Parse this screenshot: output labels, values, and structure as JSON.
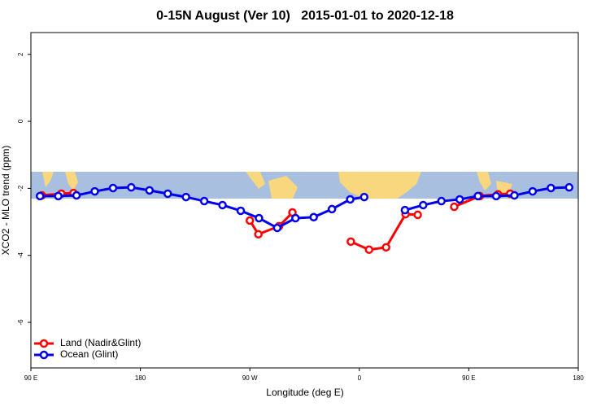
{
  "chart_data": {
    "type": "line",
    "title": "0-15N August (Ver 10)   2015-01-01 to 2020-12-18",
    "x_label": "Longitude (deg E)",
    "y_label": "XCO2 - MLO trend (ppm)",
    "xlim": [
      90,
      540
    ],
    "ylim": [
      -7.36,
      2.65
    ],
    "xticks": [
      {
        "value": 90,
        "label": "90 E"
      },
      180,
      {
        "value": 270,
        "label": "90 W"
      },
      {
        "value": 360,
        "label": "0"
      },
      {
        "value": 450,
        "label": "90 E"
      },
      {
        "value": 540,
        "label": "180"
      }
    ],
    "yticks": [
      2,
      0,
      -2,
      -4,
      -6
    ],
    "legend": "bottom-left",
    "series": [
      {
        "name": "Land (Nadir&Glint)",
        "color": "#ff0000",
        "x": [
          99,
          115,
          125,
          null,
          270,
          277,
          294,
          305,
          null,
          353,
          368,
          382,
          398,
          408,
          null,
          438,
          459,
          474,
          484
        ],
        "values": [
          -2.21,
          -2.16,
          -2.14,
          null,
          -2.96,
          -3.37,
          -3.13,
          -2.72,
          null,
          -3.59,
          -3.83,
          -3.76,
          -2.77,
          -2.79,
          null,
          -2.55,
          -2.23,
          -2.18,
          -2.16
        ]
      },
      {
        "name": "Ocean (Glint)",
        "color": "#0000ee",
        "x": [
          97.5,
          112.5,
          127.5,
          142.5,
          157.5,
          172.5,
          187.5,
          202.5,
          217.5,
          232.5,
          247.5,
          262.5,
          277.5,
          292.5,
          307.5,
          322.5,
          337.5,
          352.5,
          364,
          null,
          397.5,
          412.5,
          427.5,
          442.5,
          457.5,
          472.5,
          487.5,
          502.5,
          517.5,
          532.5
        ],
        "values": [
          -2.23,
          -2.23,
          -2.21,
          -2.09,
          -1.99,
          -1.97,
          -2.06,
          -2.16,
          -2.26,
          -2.38,
          -2.5,
          -2.67,
          -2.89,
          -3.18,
          -2.89,
          -2.86,
          -2.62,
          -2.33,
          -2.26,
          null,
          -2.65,
          -2.5,
          -2.38,
          -2.33,
          -2.23,
          -2.23,
          -2.21,
          -2.09,
          -1.99,
          -1.97
        ]
      }
    ]
  }
}
